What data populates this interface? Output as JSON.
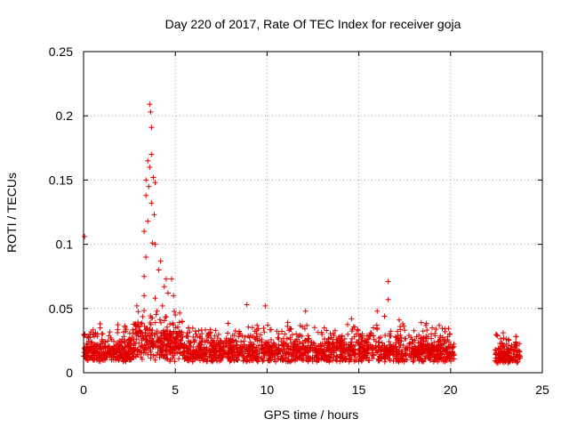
{
  "chart_data": {
    "type": "scatter",
    "title": "Day 220 of 2017, Rate Of TEC Index for receiver goja",
    "xlabel": "GPS time / hours",
    "ylabel": "ROTI / TECUs",
    "xlim": [
      0,
      25
    ],
    "ylim": [
      0,
      0.25
    ],
    "x_ticks": [
      "0",
      "5",
      "10",
      "15",
      "20",
      "25"
    ],
    "y_ticks": [
      "0",
      "0.05",
      "0.1",
      "0.15",
      "0.2",
      "0.25"
    ],
    "grid": true,
    "marker": "plus",
    "color": "#e00000",
    "segments": [
      {
        "x_start": 0.0,
        "x_end": 20.2,
        "base_y": 0.015,
        "spread_y": 0.012
      },
      {
        "x_start": 22.4,
        "x_end": 23.8,
        "base_y": 0.013,
        "spread_y": 0.01
      }
    ],
    "notable_points": [
      {
        "x": 0.05,
        "y": 0.106
      },
      {
        "x": 3.6,
        "y": 0.209
      },
      {
        "x": 3.65,
        "y": 0.203
      },
      {
        "x": 3.7,
        "y": 0.191
      },
      {
        "x": 3.5,
        "y": 0.165
      },
      {
        "x": 3.7,
        "y": 0.17
      },
      {
        "x": 3.6,
        "y": 0.16
      },
      {
        "x": 3.4,
        "y": 0.15
      },
      {
        "x": 3.55,
        "y": 0.145
      },
      {
        "x": 3.8,
        "y": 0.152
      },
      {
        "x": 3.4,
        "y": 0.138
      },
      {
        "x": 3.7,
        "y": 0.132
      },
      {
        "x": 3.9,
        "y": 0.148
      },
      {
        "x": 3.85,
        "y": 0.123
      },
      {
        "x": 3.5,
        "y": 0.118
      },
      {
        "x": 3.3,
        "y": 0.11
      },
      {
        "x": 3.75,
        "y": 0.101
      },
      {
        "x": 3.9,
        "y": 0.1
      },
      {
        "x": 3.4,
        "y": 0.09
      },
      {
        "x": 4.2,
        "y": 0.087
      },
      {
        "x": 4.1,
        "y": 0.08
      },
      {
        "x": 3.3,
        "y": 0.075
      },
      {
        "x": 4.5,
        "y": 0.073
      },
      {
        "x": 4.8,
        "y": 0.073
      },
      {
        "x": 4.4,
        "y": 0.067
      },
      {
        "x": 4.6,
        "y": 0.062
      },
      {
        "x": 4.9,
        "y": 0.06
      },
      {
        "x": 3.9,
        "y": 0.058
      },
      {
        "x": 3.3,
        "y": 0.06
      },
      {
        "x": 4.3,
        "y": 0.052
      },
      {
        "x": 4.0,
        "y": 0.048
      },
      {
        "x": 2.9,
        "y": 0.052
      },
      {
        "x": 5.0,
        "y": 0.045
      },
      {
        "x": 8.9,
        "y": 0.053
      },
      {
        "x": 9.9,
        "y": 0.052
      },
      {
        "x": 12.1,
        "y": 0.048
      },
      {
        "x": 14.6,
        "y": 0.042
      },
      {
        "x": 16.0,
        "y": 0.048
      },
      {
        "x": 16.6,
        "y": 0.071
      },
      {
        "x": 16.6,
        "y": 0.057
      },
      {
        "x": 16.4,
        "y": 0.044
      },
      {
        "x": 17.2,
        "y": 0.041
      },
      {
        "x": 18.4,
        "y": 0.039
      }
    ]
  }
}
